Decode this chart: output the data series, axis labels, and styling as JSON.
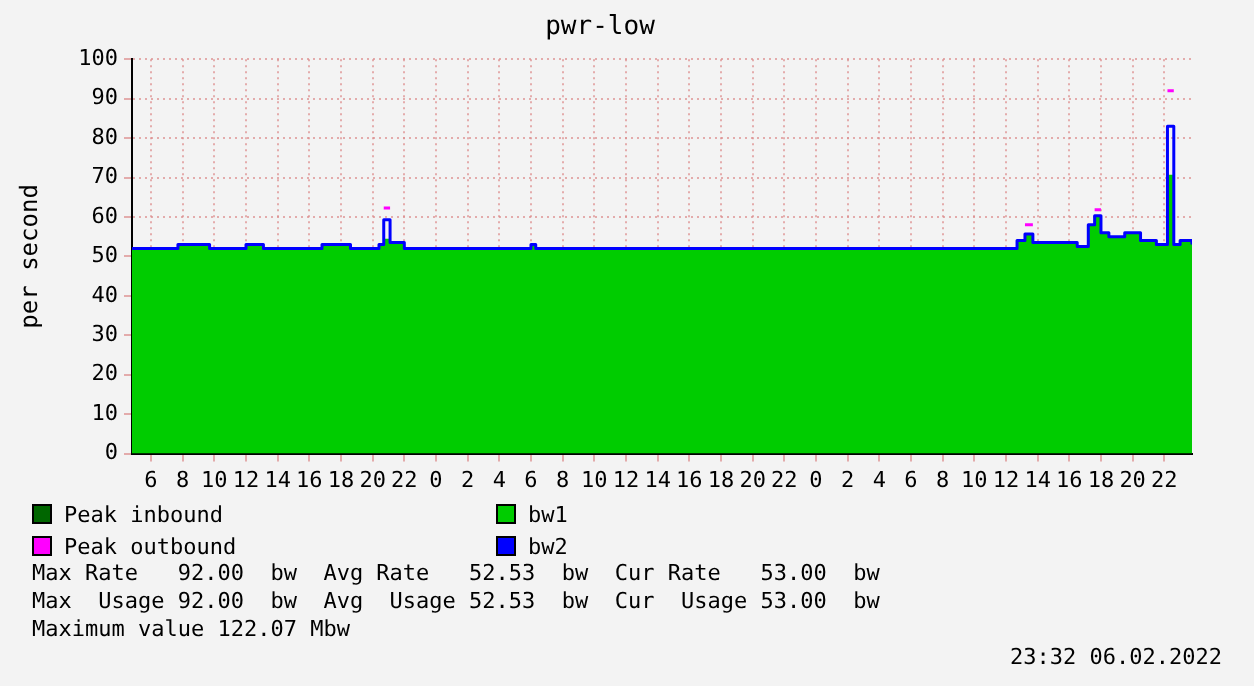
{
  "chart_data": {
    "type": "step",
    "title": "pwr-low",
    "ylabel": "per second",
    "x": [
      "2022-02-04T04:48",
      "2022-02-04T07:42",
      "2022-02-04T09:42",
      "2022-02-04T12:00",
      "2022-02-04T13:06",
      "2022-02-04T16:48",
      "2022-02-04T18:36",
      "2022-02-04T20:24",
      "2022-02-04T20:42",
      "2022-02-04T21:06",
      "2022-02-04T22:00",
      "2022-02-05T06:00",
      "2022-02-05T06:18",
      "2022-02-06T12:42",
      "2022-02-06T13:12",
      "2022-02-06T13:42",
      "2022-02-06T14:30",
      "2022-02-06T16:30",
      "2022-02-06T17:12",
      "2022-02-06T17:36",
      "2022-02-06T18:00",
      "2022-02-06T18:30",
      "2022-02-06T19:30",
      "2022-02-06T20:30",
      "2022-02-06T21:30",
      "2022-02-06T22:12",
      "2022-02-06T22:36",
      "2022-02-06T23:00",
      "2022-02-06T23:45"
    ],
    "series": [
      {
        "name": "Peak inbound",
        "type": "area",
        "color": "#006600",
        "values": [
          null,
          null,
          null,
          null,
          null,
          null,
          null,
          null,
          null,
          null,
          null,
          null,
          null,
          null,
          null,
          null,
          null,
          null,
          null,
          null,
          null,
          null,
          null,
          null,
          null,
          null,
          null,
          null,
          null
        ]
      },
      {
        "name": "bw1",
        "type": "area",
        "color": "#00cc00",
        "values": [
          52,
          53,
          52,
          53,
          52,
          53,
          52,
          53,
          54.5,
          53.5,
          52,
          53,
          52,
          54,
          55.5,
          53.5,
          53.5,
          52.5,
          58,
          60,
          56,
          55,
          56,
          54,
          53,
          70.7,
          53,
          54,
          53
        ]
      },
      {
        "name": "Peak outbound",
        "color": "#ff00ff",
        "values": [
          null,
          null,
          null,
          null,
          null,
          null,
          null,
          null,
          62.3,
          62.3,
          null,
          null,
          null,
          null,
          58,
          58,
          null,
          null,
          null,
          61.8,
          61.8,
          null,
          null,
          null,
          null,
          92,
          92,
          null,
          null
        ]
      },
      {
        "name": "bw2",
        "color": "#0000ff",
        "values": [
          52,
          53,
          52,
          53,
          52,
          53,
          52,
          53,
          59.3,
          53.5,
          52,
          53,
          52,
          54,
          55.7,
          53.5,
          53.5,
          52.5,
          58,
          60.3,
          56,
          55,
          56,
          54,
          53,
          83,
          53,
          54,
          53
        ]
      }
    ],
    "xlim": [
      "2022-02-04T04:48",
      "2022-02-06T23:45"
    ],
    "xticks": [
      {
        "value": "2022-02-04T06:00",
        "label": "6"
      },
      {
        "value": "2022-02-04T08:00",
        "label": "8"
      },
      {
        "value": "2022-02-04T10:00",
        "label": "10"
      },
      {
        "value": "2022-02-04T12:00",
        "label": "12"
      },
      {
        "value": "2022-02-04T14:00",
        "label": "14"
      },
      {
        "value": "2022-02-04T16:00",
        "label": "16"
      },
      {
        "value": "2022-02-04T18:00",
        "label": "18"
      },
      {
        "value": "2022-02-04T20:00",
        "label": "20"
      },
      {
        "value": "2022-02-04T22:00",
        "label": "22"
      },
      {
        "value": "2022-02-05T00:00",
        "label": "0"
      },
      {
        "value": "2022-02-05T02:00",
        "label": "2"
      },
      {
        "value": "2022-02-05T04:00",
        "label": "4"
      },
      {
        "value": "2022-02-05T06:00",
        "label": "6"
      },
      {
        "value": "2022-02-05T08:00",
        "label": "8"
      },
      {
        "value": "2022-02-05T10:00",
        "label": "10"
      },
      {
        "value": "2022-02-05T12:00",
        "label": "12"
      },
      {
        "value": "2022-02-05T14:00",
        "label": "14"
      },
      {
        "value": "2022-02-05T16:00",
        "label": "16"
      },
      {
        "value": "2022-02-05T18:00",
        "label": "18"
      },
      {
        "value": "2022-02-05T20:00",
        "label": "20"
      },
      {
        "value": "2022-02-05T22:00",
        "label": "22"
      },
      {
        "value": "2022-02-06T00:00",
        "label": "0"
      },
      {
        "value": "2022-02-06T02:00",
        "label": "2"
      },
      {
        "value": "2022-02-06T04:00",
        "label": "4"
      },
      {
        "value": "2022-02-06T06:00",
        "label": "6"
      },
      {
        "value": "2022-02-06T08:00",
        "label": "8"
      },
      {
        "value": "2022-02-06T10:00",
        "label": "10"
      },
      {
        "value": "2022-02-06T12:00",
        "label": "12"
      },
      {
        "value": "2022-02-06T14:00",
        "label": "14"
      },
      {
        "value": "2022-02-06T16:00",
        "label": "16"
      },
      {
        "value": "2022-02-06T18:00",
        "label": "18"
      },
      {
        "value": "2022-02-06T20:00",
        "label": "20"
      },
      {
        "value": "2022-02-06T22:00",
        "label": "22"
      }
    ],
    "ylim": [
      0,
      100
    ],
    "yticks": [
      0,
      10,
      20,
      30,
      40,
      50,
      60,
      70,
      80,
      90,
      100
    ],
    "grid": true,
    "legend": "bottom",
    "annotations": [
      "Max Rate   92.00  bw  Avg Rate   52.53  bw  Cur Rate   53.00  bw",
      "Max  Usage 92.00  bw  Avg  Usage 52.53  bw  Cur  Usage 53.00  bw",
      "Maximum value 122.07 Mbw",
      "23:32 06.02.2022"
    ]
  }
}
